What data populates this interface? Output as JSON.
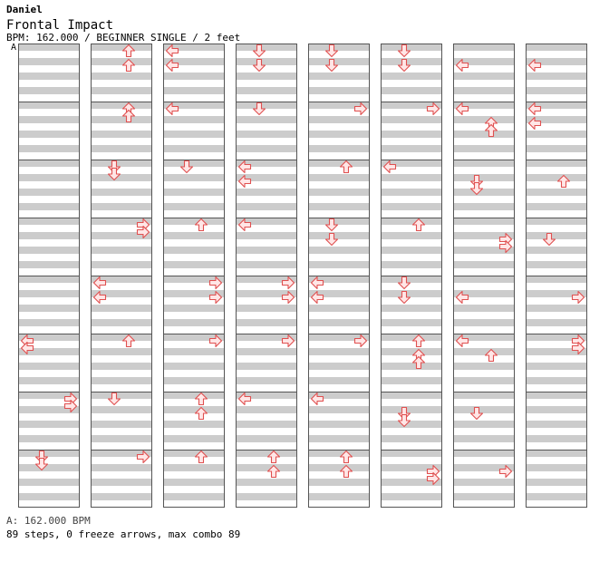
{
  "header": {
    "author": "Daniel",
    "title": "Frontal Impact",
    "info": "BPM: 162.000 / BEGINNER SINGLE / 2 feet",
    "bpm_marker": "A"
  },
  "footer": {
    "bpm_legend": "A: 162.000 BPM",
    "stats": "89 steps, 0 freeze arrows, max combo 89"
  },
  "colors": {
    "stripe": "#cccccc",
    "border": "#555555",
    "arrow_fill": "#ffe6e6",
    "arrow_stroke": "#e05050"
  },
  "chart_data": {
    "type": "step-chart",
    "columns": 8,
    "measures_per_column": 8,
    "rows_per_measure": 8,
    "lanes": [
      "left",
      "down",
      "up",
      "right"
    ],
    "notes": [
      {
        "col": 0,
        "lane": "left",
        "measure": 5,
        "row": 0
      },
      {
        "col": 0,
        "lane": "left",
        "measure": 5,
        "row": 1
      },
      {
        "col": 0,
        "lane": "right",
        "measure": 6,
        "row": 0
      },
      {
        "col": 0,
        "lane": "right",
        "measure": 6,
        "row": 1
      },
      {
        "col": 0,
        "lane": "down",
        "measure": 7,
        "row": 0
      },
      {
        "col": 0,
        "lane": "down",
        "measure": 7,
        "row": 1
      },
      {
        "col": 1,
        "lane": "up",
        "measure": 0,
        "row": 0
      },
      {
        "col": 1,
        "lane": "up",
        "measure": 0,
        "row": 2
      },
      {
        "col": 1,
        "lane": "up",
        "measure": 1,
        "row": 0
      },
      {
        "col": 1,
        "lane": "up",
        "measure": 1,
        "row": 1
      },
      {
        "col": 1,
        "lane": "down",
        "measure": 2,
        "row": 0
      },
      {
        "col": 1,
        "lane": "down",
        "measure": 2,
        "row": 1
      },
      {
        "col": 1,
        "lane": "right",
        "measure": 3,
        "row": 0
      },
      {
        "col": 1,
        "lane": "right",
        "measure": 3,
        "row": 1
      },
      {
        "col": 1,
        "lane": "left",
        "measure": 4,
        "row": 0
      },
      {
        "col": 1,
        "lane": "left",
        "measure": 4,
        "row": 2
      },
      {
        "col": 1,
        "lane": "up",
        "measure": 5,
        "row": 0
      },
      {
        "col": 1,
        "lane": "down",
        "measure": 6,
        "row": 0
      },
      {
        "col": 1,
        "lane": "right",
        "measure": 7,
        "row": 0
      },
      {
        "col": 2,
        "lane": "left",
        "measure": 0,
        "row": 0
      },
      {
        "col": 2,
        "lane": "left",
        "measure": 0,
        "row": 2
      },
      {
        "col": 2,
        "lane": "left",
        "measure": 1,
        "row": 0
      },
      {
        "col": 2,
        "lane": "down",
        "measure": 2,
        "row": 0
      },
      {
        "col": 2,
        "lane": "up",
        "measure": 3,
        "row": 0
      },
      {
        "col": 2,
        "lane": "right",
        "measure": 4,
        "row": 0
      },
      {
        "col": 2,
        "lane": "right",
        "measure": 4,
        "row": 2
      },
      {
        "col": 2,
        "lane": "right",
        "measure": 5,
        "row": 0
      },
      {
        "col": 2,
        "lane": "up",
        "measure": 6,
        "row": 0
      },
      {
        "col": 2,
        "lane": "up",
        "measure": 6,
        "row": 2
      },
      {
        "col": 2,
        "lane": "up",
        "measure": 7,
        "row": 0
      },
      {
        "col": 3,
        "lane": "down",
        "measure": 0,
        "row": 0
      },
      {
        "col": 3,
        "lane": "down",
        "measure": 0,
        "row": 2
      },
      {
        "col": 3,
        "lane": "down",
        "measure": 1,
        "row": 0
      },
      {
        "col": 3,
        "lane": "left",
        "measure": 2,
        "row": 0
      },
      {
        "col": 3,
        "lane": "left",
        "measure": 2,
        "row": 2
      },
      {
        "col": 3,
        "lane": "left",
        "measure": 3,
        "row": 0
      },
      {
        "col": 3,
        "lane": "right",
        "measure": 4,
        "row": 0
      },
      {
        "col": 3,
        "lane": "right",
        "measure": 4,
        "row": 2
      },
      {
        "col": 3,
        "lane": "right",
        "measure": 5,
        "row": 0
      },
      {
        "col": 3,
        "lane": "left",
        "measure": 6,
        "row": 0
      },
      {
        "col": 3,
        "lane": "up",
        "measure": 7,
        "row": 0
      },
      {
        "col": 3,
        "lane": "up",
        "measure": 7,
        "row": 2
      },
      {
        "col": 4,
        "lane": "down",
        "measure": 0,
        "row": 0
      },
      {
        "col": 4,
        "lane": "down",
        "measure": 0,
        "row": 2
      },
      {
        "col": 4,
        "lane": "right",
        "measure": 1,
        "row": 0
      },
      {
        "col": 4,
        "lane": "up",
        "measure": 2,
        "row": 0
      },
      {
        "col": 4,
        "lane": "down",
        "measure": 3,
        "row": 0
      },
      {
        "col": 4,
        "lane": "down",
        "measure": 3,
        "row": 2
      },
      {
        "col": 4,
        "lane": "left",
        "measure": 4,
        "row": 0
      },
      {
        "col": 4,
        "lane": "left",
        "measure": 4,
        "row": 2
      },
      {
        "col": 4,
        "lane": "right",
        "measure": 5,
        "row": 0
      },
      {
        "col": 4,
        "lane": "left",
        "measure": 6,
        "row": 0
      },
      {
        "col": 4,
        "lane": "up",
        "measure": 7,
        "row": 0
      },
      {
        "col": 4,
        "lane": "up",
        "measure": 7,
        "row": 2
      },
      {
        "col": 5,
        "lane": "down",
        "measure": 0,
        "row": 0
      },
      {
        "col": 5,
        "lane": "down",
        "measure": 0,
        "row": 2
      },
      {
        "col": 5,
        "lane": "right",
        "measure": 1,
        "row": 0
      },
      {
        "col": 5,
        "lane": "left",
        "measure": 2,
        "row": 0
      },
      {
        "col": 5,
        "lane": "up",
        "measure": 3,
        "row": 0
      },
      {
        "col": 5,
        "lane": "down",
        "measure": 4,
        "row": 0
      },
      {
        "col": 5,
        "lane": "down",
        "measure": 4,
        "row": 2
      },
      {
        "col": 5,
        "lane": "up",
        "measure": 5,
        "row": 0
      },
      {
        "col": 5,
        "lane": "up",
        "measure": 5,
        "row": 2
      },
      {
        "col": 5,
        "lane": "up",
        "measure": 5,
        "row": 3
      },
      {
        "col": 5,
        "lane": "down",
        "measure": 6,
        "row": 2
      },
      {
        "col": 5,
        "lane": "down",
        "measure": 6,
        "row": 3
      },
      {
        "col": 5,
        "lane": "right",
        "measure": 7,
        "row": 2
      },
      {
        "col": 5,
        "lane": "right",
        "measure": 7,
        "row": 3
      },
      {
        "col": 6,
        "lane": "left",
        "measure": 0,
        "row": 2
      },
      {
        "col": 6,
        "lane": "left",
        "measure": 1,
        "row": 0
      },
      {
        "col": 6,
        "lane": "up",
        "measure": 1,
        "row": 2
      },
      {
        "col": 6,
        "lane": "up",
        "measure": 1,
        "row": 3
      },
      {
        "col": 6,
        "lane": "down",
        "measure": 2,
        "row": 2
      },
      {
        "col": 6,
        "lane": "down",
        "measure": 2,
        "row": 3
      },
      {
        "col": 6,
        "lane": "right",
        "measure": 3,
        "row": 2
      },
      {
        "col": 6,
        "lane": "right",
        "measure": 3,
        "row": 3
      },
      {
        "col": 6,
        "lane": "left",
        "measure": 4,
        "row": 2
      },
      {
        "col": 6,
        "lane": "left",
        "measure": 5,
        "row": 0
      },
      {
        "col": 6,
        "lane": "up",
        "measure": 5,
        "row": 2
      },
      {
        "col": 6,
        "lane": "down",
        "measure": 6,
        "row": 2
      },
      {
        "col": 6,
        "lane": "right",
        "measure": 7,
        "row": 2
      },
      {
        "col": 7,
        "lane": "left",
        "measure": 0,
        "row": 2
      },
      {
        "col": 7,
        "lane": "left",
        "measure": 1,
        "row": 0
      },
      {
        "col": 7,
        "lane": "left",
        "measure": 1,
        "row": 2
      },
      {
        "col": 7,
        "lane": "up",
        "measure": 2,
        "row": 2
      },
      {
        "col": 7,
        "lane": "down",
        "measure": 3,
        "row": 2
      },
      {
        "col": 7,
        "lane": "right",
        "measure": 4,
        "row": 2
      },
      {
        "col": 7,
        "lane": "right",
        "measure": 5,
        "row": 0
      },
      {
        "col": 7,
        "lane": "right",
        "measure": 5,
        "row": 1
      }
    ]
  }
}
